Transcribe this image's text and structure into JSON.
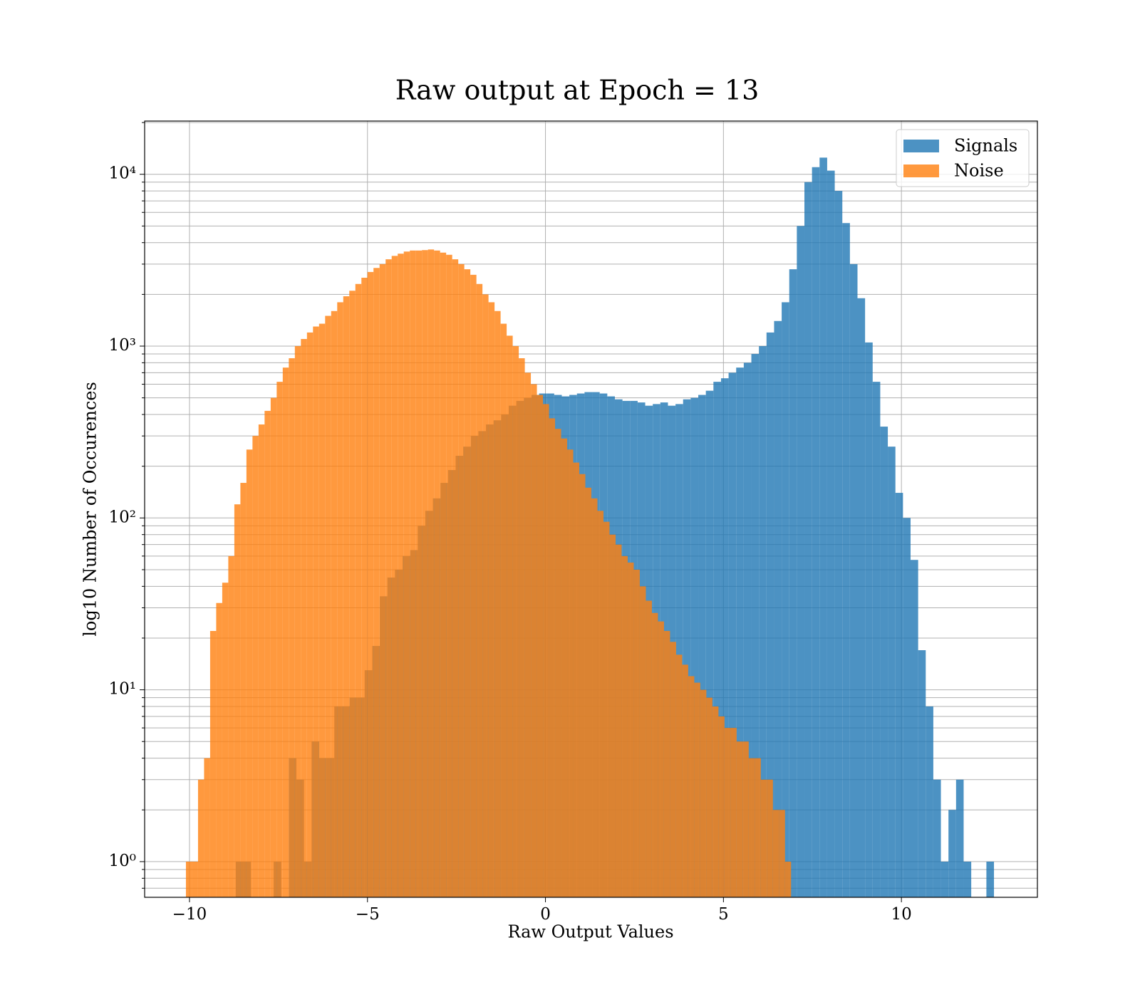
{
  "chart_data": {
    "type": "histogram",
    "title": "Raw output at Epoch = 13",
    "xlabel": "Raw Output Values",
    "ylabel": "log10 Number of Occurences",
    "yscale": "log",
    "grid": true,
    "legend": "upper right",
    "alpha": 0.8,
    "xlim": [
      -11.26,
      13.82
    ],
    "ylim": [
      0.62,
      20400
    ],
    "xticks": [
      {
        "value": -10,
        "label": "−10"
      },
      {
        "value": -5,
        "label": "−5"
      },
      0,
      5,
      10
    ],
    "yticks": [
      {
        "value": 1,
        "label": "10⁰"
      },
      {
        "value": 10,
        "label": "10¹"
      },
      {
        "value": 100,
        "label": "10²"
      },
      {
        "value": 1000,
        "label": "10³"
      },
      {
        "value": 10000,
        "label": "10⁴"
      }
    ],
    "yminorticks": [
      0.7,
      0.8,
      0.9,
      2,
      3,
      4,
      5,
      6,
      7,
      8,
      9,
      20,
      30,
      40,
      50,
      60,
      70,
      80,
      90,
      200,
      300,
      400,
      500,
      600,
      700,
      800,
      900,
      2000,
      3000,
      4000,
      5000,
      6000,
      7000,
      8000,
      9000,
      20000
    ],
    "series": [
      {
        "name": "Signals",
        "color": "#1f77b4",
        "bins": [
          -8.7,
          -8.487,
          -8.274,
          -8.061,
          -7.848,
          -7.635,
          -7.422,
          -7.209,
          -6.996,
          -6.783,
          -6.57,
          -6.357,
          -6.144,
          -5.931,
          -5.718,
          -5.505,
          -5.292,
          -5.079,
          -4.866,
          -4.653,
          -4.44,
          -4.227,
          -4.014,
          -3.801,
          -3.588,
          -3.375,
          -3.162,
          -2.949,
          -2.736,
          -2.523,
          -2.31,
          -2.097,
          -1.884,
          -1.671,
          -1.458,
          -1.245,
          -1.032,
          -0.819,
          -0.606,
          -0.393,
          -0.18,
          0.033,
          0.246,
          0.459,
          0.672,
          0.885,
          1.098,
          1.311,
          1.524,
          1.737,
          1.95,
          2.163,
          2.376,
          2.589,
          2.802,
          3.015,
          3.228,
          3.441,
          3.654,
          3.867,
          4.08,
          4.293,
          4.506,
          4.719,
          4.932,
          5.145,
          5.358,
          5.571,
          5.784,
          5.997,
          6.21,
          6.423,
          6.636,
          6.849,
          7.062,
          7.275,
          7.488,
          7.701,
          7.914,
          8.127,
          8.34,
          8.553,
          8.766,
          8.979,
          9.192,
          9.405,
          9.618,
          9.831,
          10.044,
          10.257,
          10.47,
          10.683,
          10.896,
          11.109,
          11.322,
          11.535,
          11.748,
          11.961,
          12.174,
          12.387,
          12.6
        ],
        "values": [
          1,
          1,
          0,
          0,
          0,
          1,
          0,
          4,
          3,
          1,
          5,
          4,
          4,
          8,
          8,
          9,
          9,
          13,
          18,
          35,
          45,
          50,
          60,
          65,
          90,
          110,
          130,
          160,
          190,
          230,
          260,
          300,
          320,
          350,
          370,
          400,
          450,
          480,
          500,
          520,
          530,
          530,
          520,
          510,
          520,
          530,
          540,
          540,
          530,
          510,
          490,
          480,
          480,
          470,
          450,
          460,
          470,
          450,
          460,
          490,
          500,
          520,
          550,
          620,
          650,
          700,
          750,
          800,
          900,
          1000,
          1200,
          1400,
          1800,
          2800,
          5000,
          9000,
          11000,
          12500,
          10500,
          8000,
          5200,
          3000,
          1900,
          1050,
          620,
          340,
          260,
          140,
          100,
          57,
          17,
          8,
          3,
          1,
          2,
          3,
          1,
          0,
          0,
          1
        ]
      },
      {
        "name": "Noise",
        "color": "#ff7f0e",
        "bins": [
          -10.1,
          -9.93,
          -9.76,
          -9.59,
          -9.42,
          -9.25,
          -9.08,
          -8.91,
          -8.74,
          -8.57,
          -8.4,
          -8.23,
          -8.06,
          -7.89,
          -7.72,
          -7.55,
          -7.38,
          -7.21,
          -7.04,
          -6.87,
          -6.7,
          -6.53,
          -6.36,
          -6.19,
          -6.02,
          -5.85,
          -5.68,
          -5.51,
          -5.34,
          -5.17,
          -5.0,
          -4.83,
          -4.66,
          -4.49,
          -4.32,
          -4.15,
          -3.98,
          -3.81,
          -3.64,
          -3.47,
          -3.3,
          -3.13,
          -2.96,
          -2.79,
          -2.62,
          -2.45,
          -2.28,
          -2.11,
          -1.94,
          -1.77,
          -1.6,
          -1.43,
          -1.26,
          -1.09,
          -0.92,
          -0.75,
          -0.58,
          -0.41,
          -0.24,
          -0.07,
          0.1,
          0.27,
          0.44,
          0.61,
          0.78,
          0.95,
          1.12,
          1.29,
          1.46,
          1.63,
          1.8,
          1.97,
          2.14,
          2.31,
          2.48,
          2.65,
          2.82,
          2.99,
          3.16,
          3.33,
          3.5,
          3.67,
          3.84,
          4.01,
          4.18,
          4.35,
          4.52,
          4.69,
          4.86,
          5.03,
          5.2,
          5.37,
          5.54,
          5.71,
          5.88,
          6.05,
          6.22,
          6.39,
          6.56,
          6.73,
          6.9
        ],
        "values": [
          1,
          1,
          3,
          4,
          22,
          32,
          42,
          60,
          120,
          160,
          250,
          300,
          350,
          420,
          500,
          620,
          750,
          850,
          1000,
          1100,
          1200,
          1300,
          1350,
          1500,
          1600,
          1800,
          1950,
          2100,
          2300,
          2500,
          2700,
          2850,
          3000,
          3200,
          3350,
          3450,
          3550,
          3600,
          3600,
          3620,
          3650,
          3600,
          3500,
          3400,
          3200,
          3000,
          2800,
          2600,
          2300,
          2000,
          1800,
          1600,
          1350,
          1150,
          1000,
          850,
          700,
          600,
          520,
          460,
          380,
          330,
          290,
          250,
          210,
          180,
          150,
          130,
          110,
          95,
          80,
          70,
          60,
          55,
          50,
          40,
          33,
          28,
          25,
          22,
          19,
          16,
          14,
          12,
          11,
          10,
          9,
          8,
          7,
          6,
          6,
          5,
          5,
          4,
          4,
          3,
          3,
          2,
          2,
          1
        ]
      }
    ]
  }
}
